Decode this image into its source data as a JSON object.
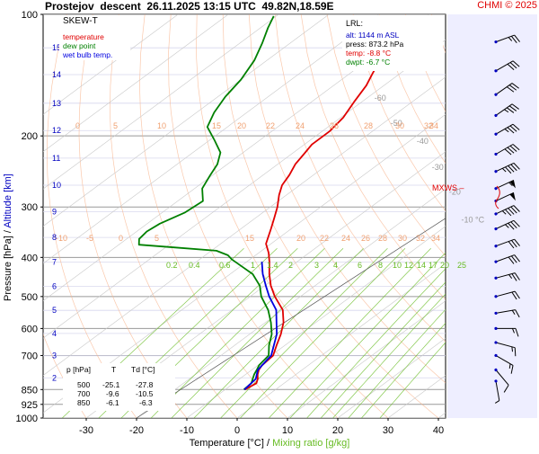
{
  "header": {
    "station": "Prostejov",
    "mode": "descent",
    "datetime": "26.11.2025 13:15 UTC",
    "coords": "49.82N,18.59E",
    "copyright": "CHMI © 2025"
  },
  "legend": {
    "title": "SKEW-T",
    "items": [
      {
        "label": "temperature",
        "color": "#e00000"
      },
      {
        "label": "dew point",
        "color": "#008000"
      },
      {
        "label": "wet bulb temp.",
        "color": "#0000e0"
      }
    ]
  },
  "lrl": {
    "title": "LRL:",
    "alt": "alt: 1144 m ASL",
    "press": "press: 873.2 hPa",
    "temp": "temp: -8.8 °C",
    "dwpt": "dwpt: -6.7 °C"
  },
  "summary": {
    "headers": [
      "p [hPa]",
      "T",
      "Td [°C]"
    ],
    "rows": [
      [
        "500",
        "-25.1",
        "-27.8"
      ],
      [
        "700",
        "-9.6",
        "-10.5"
      ],
      [
        "850",
        "-6.1",
        "-6.3"
      ]
    ]
  },
  "mxws_label": "MXWS",
  "colors": {
    "temperature": "#e00000",
    "dewpoint": "#008000",
    "wetbulb": "#0000e0",
    "altitude": "#0000c0",
    "mixing": "#66bb22",
    "isotherm_text": "#999999",
    "adiabat": "#f8b088",
    "plot_bg": "#eeeeff"
  },
  "chart_data": {
    "type": "line",
    "skew_t": true,
    "xlabel_temp": "Temperature [°C]",
    "xlabel_mix": "Mixing ratio [g/kg]",
    "xlabel_sep": "/",
    "ylabel_p": "Pressure [hPa]",
    "ylabel_alt": "Altitude [km]",
    "ylabel_sep": "/",
    "xlim": [
      -37,
      41
    ],
    "ylim": [
      1000,
      100
    ],
    "x_ticks": [
      -30,
      -20,
      -10,
      0,
      10,
      20,
      30,
      40
    ],
    "x_tick_labels": [
      "-30",
      "-20",
      "-10",
      "0",
      "10",
      "20",
      "30",
      "40"
    ],
    "pressure_ticks": [
      1000,
      925,
      850,
      700,
      600,
      500,
      400,
      300,
      200,
      100
    ],
    "pressure_tick_labels": [
      "1000",
      "925",
      "850",
      "700",
      "600",
      "500",
      "400",
      "300",
      "200",
      "100"
    ],
    "altitude_ticks": [
      {
        "label": "2",
        "p": 795
      },
      {
        "label": "3",
        "p": 701
      },
      {
        "label": "4",
        "p": 617
      },
      {
        "label": "5",
        "p": 541
      },
      {
        "label": "6",
        "p": 472
      },
      {
        "label": "7",
        "p": 411
      },
      {
        "label": "8",
        "p": 357
      },
      {
        "label": "9",
        "p": 308
      },
      {
        "label": "10",
        "p": 265
      },
      {
        "label": "11",
        "p": 227
      },
      {
        "label": "12",
        "p": 194
      },
      {
        "label": "13",
        "p": 166
      },
      {
        "label": "14",
        "p": 141
      },
      {
        "label": "15",
        "p": 121
      }
    ],
    "isotherm_labels": [
      {
        "label": "-80 °C",
        "p": 108
      },
      {
        "label": "-70",
        "p": 136
      },
      {
        "label": "-60",
        "p": 161
      },
      {
        "label": "-50",
        "p": 186
      },
      {
        "label": "-40",
        "p": 206
      },
      {
        "label": "-30",
        "p": 239
      },
      {
        "label": "-20",
        "p": 275
      },
      {
        "label": "-10 °C",
        "p": 323
      }
    ],
    "adiabat_row1": {
      "p": 195,
      "labels": [
        "0",
        "5",
        "10",
        "15",
        "20",
        "22",
        "24",
        "26",
        "28",
        "30",
        "32",
        "34"
      ]
    },
    "adiabat_row2": {
      "p": 370,
      "labels": [
        "-10",
        "-5",
        "0",
        "5",
        "15",
        "20",
        "22",
        "24",
        "26",
        "28",
        "30",
        "32",
        "34"
      ]
    },
    "mixing_ratio_labels": [
      "0.2",
      "0.4",
      "0.6",
      "1",
      "1.4",
      "2",
      "3",
      "4",
      "6",
      "8",
      "10",
      "12",
      "14",
      "17",
      "20",
      "25"
    ],
    "series": [
      {
        "name": "temperature",
        "points": [
          [
            850,
            -6.1
          ],
          [
            820,
            -5.5
          ],
          [
            800,
            -6.4
          ],
          [
            780,
            -7.6
          ],
          [
            760,
            -8.6
          ],
          [
            740,
            -9.2
          ],
          [
            700,
            -9.6
          ],
          [
            660,
            -11.7
          ],
          [
            620,
            -13.8
          ],
          [
            580,
            -16.4
          ],
          [
            540,
            -19.9
          ],
          [
            500,
            -25.1
          ],
          [
            470,
            -28.8
          ],
          [
            440,
            -32.2
          ],
          [
            410,
            -35.5
          ],
          [
            390,
            -38.0
          ],
          [
            370,
            -41.0
          ],
          [
            340,
            -44.0
          ],
          [
            320,
            -46.2
          ],
          [
            300,
            -48.6
          ],
          [
            280,
            -51.5
          ],
          [
            265,
            -53.5
          ],
          [
            250,
            -54.8
          ],
          [
            235,
            -56.5
          ],
          [
            222,
            -57.5
          ],
          [
            210,
            -58.5
          ],
          [
            195,
            -58.5
          ],
          [
            180,
            -59.5
          ],
          [
            165,
            -61.5
          ],
          [
            150,
            -63.5
          ],
          [
            140,
            -65.5
          ],
          [
            130,
            -67.5
          ],
          [
            120,
            -69.0
          ],
          [
            112,
            -70.0
          ],
          [
            106,
            -72.0
          ],
          [
            101,
            -73.5
          ]
        ]
      },
      {
        "name": "dew point",
        "points": [
          [
            850,
            -6.3
          ],
          [
            820,
            -6.5
          ],
          [
            800,
            -7.4
          ],
          [
            780,
            -8.3
          ],
          [
            760,
            -9.0
          ],
          [
            740,
            -9.8
          ],
          [
            700,
            -10.5
          ],
          [
            660,
            -13.2
          ],
          [
            620,
            -15.6
          ],
          [
            580,
            -18.9
          ],
          [
            540,
            -22.8
          ],
          [
            500,
            -27.8
          ],
          [
            470,
            -31.0
          ],
          [
            440,
            -35.5
          ],
          [
            420,
            -40.0
          ],
          [
            405,
            -43.5
          ],
          [
            395,
            -45.5
          ],
          [
            385,
            -49.0
          ],
          [
            378,
            -58.0
          ],
          [
            372,
            -66.0
          ],
          [
            360,
            -67.5
          ],
          [
            345,
            -68.0
          ],
          [
            330,
            -67.5
          ],
          [
            310,
            -65.5
          ],
          [
            290,
            -65.0
          ],
          [
            270,
            -68.5
          ],
          [
            250,
            -70.5
          ],
          [
            235,
            -72.0
          ],
          [
            220,
            -74.5
          ],
          [
            205,
            -79.0
          ],
          [
            190,
            -84.0
          ],
          [
            175,
            -86.5
          ],
          [
            160,
            -88.5
          ],
          [
            145,
            -90.0
          ],
          [
            130,
            -92.5
          ],
          [
            118,
            -95.5
          ],
          [
            108,
            -98.5
          ],
          [
            101,
            -100.5
          ]
        ]
      },
      {
        "name": "wet bulb temp.",
        "points": [
          [
            850,
            -6.2
          ],
          [
            800,
            -6.8
          ],
          [
            760,
            -8.8
          ],
          [
            700,
            -10.0
          ],
          [
            620,
            -14.6
          ],
          [
            540,
            -21.2
          ],
          [
            500,
            -26.2
          ],
          [
            470,
            -29.8
          ],
          [
            440,
            -33.5
          ],
          [
            410,
            -37.0
          ]
        ]
      }
    ]
  },
  "wind_barbs": [
    {
      "p": 117,
      "speed": 25,
      "dir": 250
    },
    {
      "p": 138,
      "speed": 30,
      "dir": 240
    },
    {
      "p": 158,
      "speed": 30,
      "dir": 235
    },
    {
      "p": 178,
      "speed": 35,
      "dir": 235
    },
    {
      "p": 198,
      "speed": 35,
      "dir": 240
    },
    {
      "p": 222,
      "speed": 40,
      "dir": 240
    },
    {
      "p": 245,
      "speed": 45,
      "dir": 245
    },
    {
      "p": 270,
      "speed": 55,
      "dir": 245
    },
    {
      "p": 290,
      "speed": 50,
      "dir": 245
    },
    {
      "p": 312,
      "speed": 45,
      "dir": 245
    },
    {
      "p": 340,
      "speed": 35,
      "dir": 245
    },
    {
      "p": 375,
      "speed": 30,
      "dir": 250
    },
    {
      "p": 410,
      "speed": 30,
      "dir": 250
    },
    {
      "p": 450,
      "speed": 25,
      "dir": 255
    },
    {
      "p": 500,
      "speed": 20,
      "dir": 255
    },
    {
      "p": 550,
      "speed": 15,
      "dir": 260
    },
    {
      "p": 600,
      "speed": 15,
      "dir": 270
    },
    {
      "p": 650,
      "speed": 15,
      "dir": 285
    },
    {
      "p": 700,
      "speed": 15,
      "dir": 300
    },
    {
      "p": 760,
      "speed": 10,
      "dir": 320
    },
    {
      "p": 810,
      "speed": 5,
      "dir": 350
    }
  ]
}
